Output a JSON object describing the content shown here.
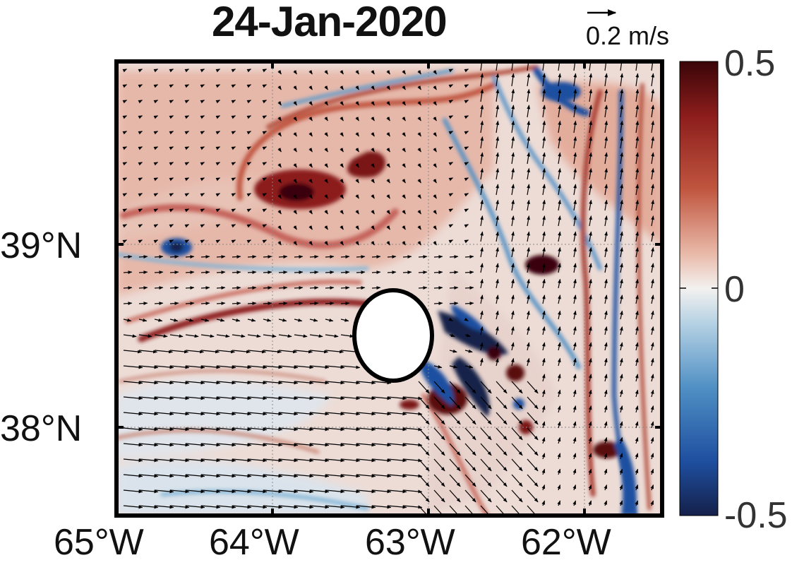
{
  "title": "24-Jan-2020",
  "scale_arrow": {
    "label": "0.2 m/s",
    "value_m_s": 0.2
  },
  "axes": {
    "lat_ticks": [
      "39°N",
      "38°N"
    ],
    "lon_ticks": [
      "65°W",
      "64°W",
      "63°W",
      "62°W"
    ],
    "lon_range": [
      -65,
      -61.5
    ],
    "lat_range": [
      37.5,
      39.95
    ]
  },
  "colorbar": {
    "ticks": [
      "0.5",
      "0",
      "-0.5"
    ],
    "range": [
      -0.5,
      0.5
    ],
    "colors": {
      "high": "#3a0508",
      "mid_high": "#c0553f",
      "zero": "#f3f1ef",
      "mid_low": "#4f8fc4",
      "low": "#15204a"
    }
  },
  "land_mask": {
    "shape": "island-ellipse",
    "center_lon": -63.2,
    "center_lat": 38.5,
    "fill": "#ffffff"
  },
  "colors": {
    "frame": "#000000",
    "grid": "#888888",
    "arrow": "#000000"
  }
}
